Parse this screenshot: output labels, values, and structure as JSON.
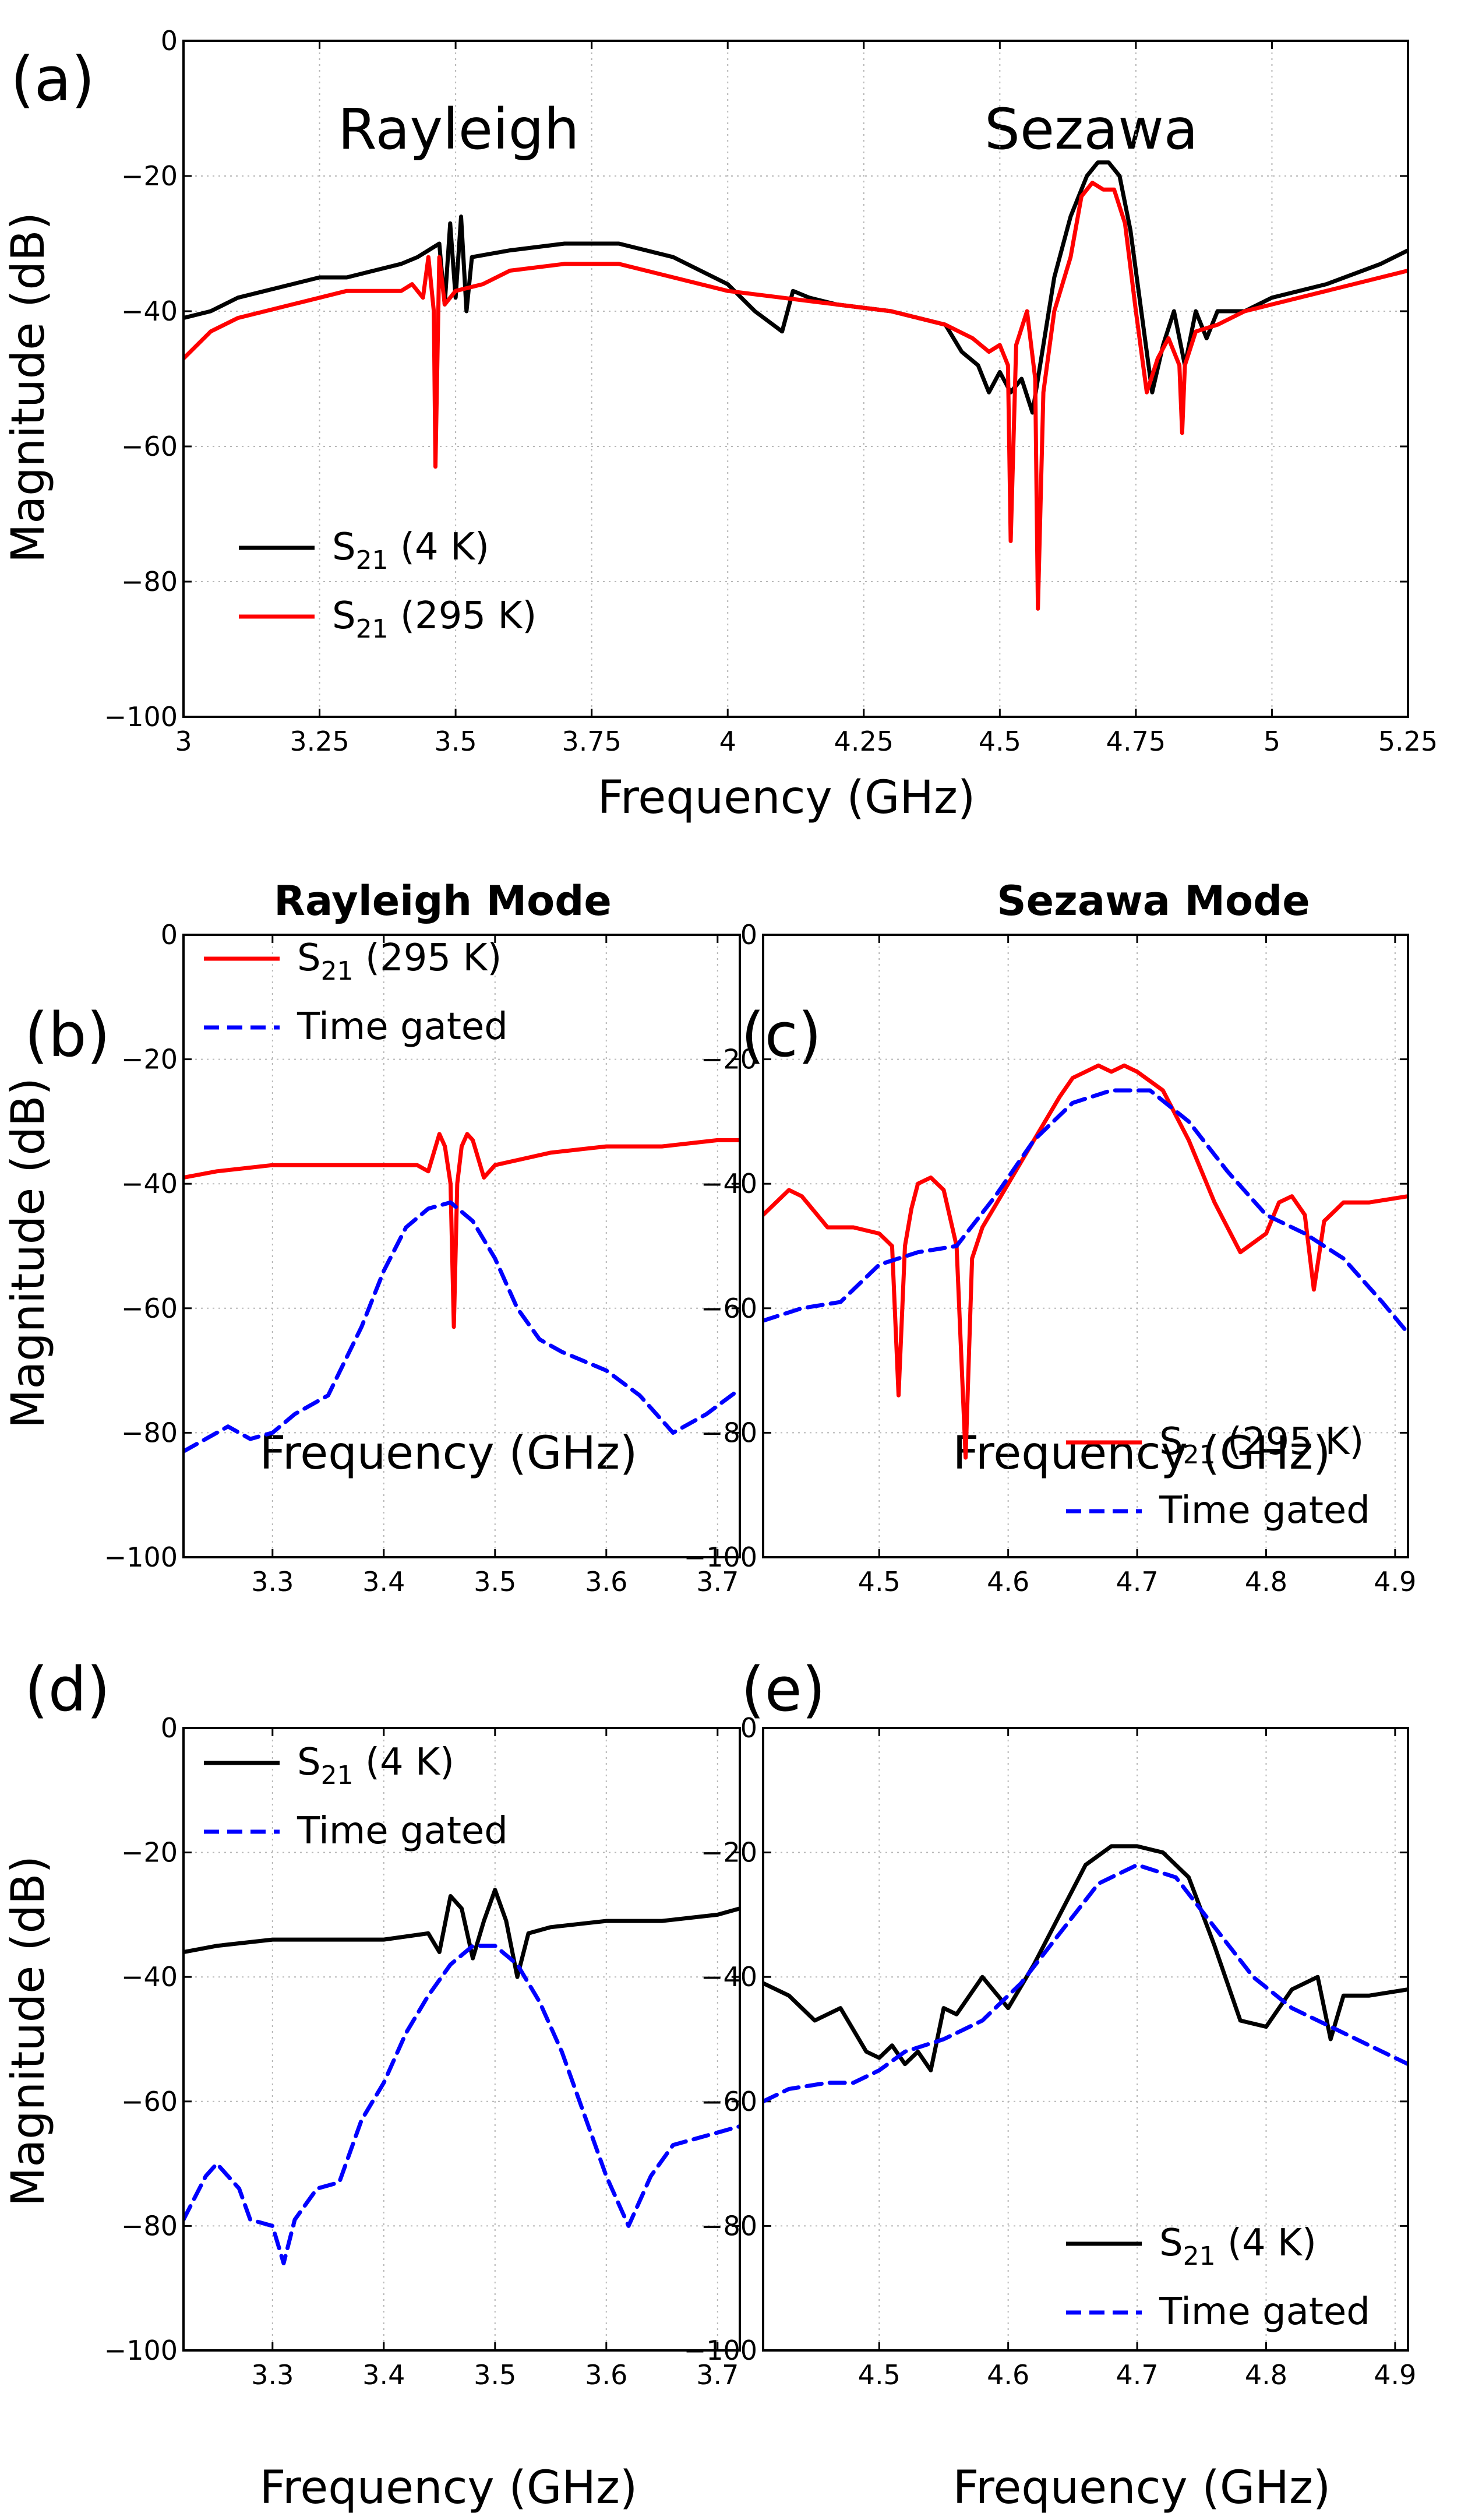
{
  "chart_data": [
    {
      "type": "line",
      "panel": "(a)",
      "xlabel": "Frequency (GHz)",
      "ylabel": "Magnitude (dB)",
      "xlim": [
        3,
        5.25
      ],
      "ylim": [
        -100,
        0
      ],
      "xticks": [
        "3",
        "3.25",
        "3.5",
        "3.75",
        "4",
        "4.25",
        "4.5",
        "4.75",
        "5",
        "5.25"
      ],
      "yticks": [
        "0",
        "−20",
        "−40",
        "−60",
        "−80",
        "−100"
      ],
      "annotations": [
        "Rayleigh",
        "Sezawa"
      ],
      "legend_position": "lower-left",
      "grid": true,
      "series": [
        {
          "name": "S21 (4 K)",
          "name_base": "S",
          "name_sub": "21",
          "name_rest": " (4 K)",
          "color": "#000000",
          "dash": "solid",
          "x": [
            3.0,
            3.05,
            3.1,
            3.15,
            3.2,
            3.25,
            3.3,
            3.35,
            3.4,
            3.43,
            3.45,
            3.47,
            3.48,
            3.49,
            3.5,
            3.51,
            3.52,
            3.53,
            3.6,
            3.7,
            3.8,
            3.9,
            4.0,
            4.05,
            4.1,
            4.12,
            4.15,
            4.2,
            4.3,
            4.4,
            4.43,
            4.46,
            4.48,
            4.5,
            4.52,
            4.54,
            4.56,
            4.58,
            4.6,
            4.63,
            4.66,
            4.68,
            4.7,
            4.72,
            4.74,
            4.76,
            4.78,
            4.8,
            4.82,
            4.84,
            4.86,
            4.88,
            4.9,
            4.95,
            5.0,
            5.1,
            5.2,
            5.25
          ],
          "y": [
            -41,
            -40,
            -38,
            -37,
            -36,
            -35,
            -35,
            -34,
            -33,
            -32,
            -31,
            -30,
            -39,
            -27,
            -38,
            -26,
            -40,
            -32,
            -31,
            -30,
            -30,
            -32,
            -36,
            -40,
            -43,
            -37,
            -38,
            -39,
            -40,
            -42,
            -46,
            -48,
            -52,
            -49,
            -52,
            -50,
            -55,
            -45,
            -35,
            -26,
            -20,
            -18,
            -18,
            -20,
            -28,
            -40,
            -52,
            -45,
            -40,
            -48,
            -40,
            -44,
            -40,
            -40,
            -38,
            -36,
            -33,
            -31
          ]
        },
        {
          "name": "S21 (295 K)",
          "name_base": "S",
          "name_sub": "21",
          "name_rest": " (295 K)",
          "color": "#ff0000",
          "dash": "solid",
          "x": [
            3.0,
            3.05,
            3.1,
            3.15,
            3.2,
            3.25,
            3.3,
            3.35,
            3.4,
            3.42,
            3.44,
            3.45,
            3.46,
            3.463,
            3.47,
            3.48,
            3.5,
            3.55,
            3.6,
            3.7,
            3.8,
            3.9,
            4.0,
            4.1,
            4.2,
            4.3,
            4.4,
            4.45,
            4.48,
            4.5,
            4.515,
            4.52,
            4.53,
            4.55,
            4.565,
            4.57,
            4.58,
            4.6,
            4.63,
            4.65,
            4.67,
            4.69,
            4.71,
            4.73,
            4.75,
            4.77,
            4.79,
            4.81,
            4.83,
            4.835,
            4.84,
            4.86,
            4.9,
            4.95,
            5.0,
            5.1,
            5.2,
            5.25
          ],
          "y": [
            -47,
            -43,
            -41,
            -40,
            -39,
            -38,
            -37,
            -37,
            -37,
            -36,
            -38,
            -32,
            -40,
            -63,
            -32,
            -39,
            -37,
            -36,
            -34,
            -33,
            -33,
            -35,
            -37,
            -38,
            -39,
            -40,
            -42,
            -44,
            -46,
            -45,
            -48,
            -74,
            -45,
            -40,
            -50,
            -84,
            -52,
            -40,
            -32,
            -23,
            -21,
            -22,
            -22,
            -27,
            -40,
            -52,
            -47,
            -44,
            -48,
            -58,
            -48,
            -43,
            -42,
            -40,
            -39,
            -37,
            -35,
            -34
          ]
        }
      ]
    },
    {
      "type": "line",
      "panel": "(b)",
      "title": "Rayleigh Mode",
      "xlabel": "Frequency (GHz)",
      "ylabel": "Magnitude (dB)",
      "xlim": [
        3.22,
        3.72
      ],
      "ylim": [
        -100,
        0
      ],
      "xticks": [
        "3.3",
        "3.4",
        "3.5",
        "3.6",
        "3.7"
      ],
      "yticks": [
        "0",
        "−20",
        "−40",
        "−60",
        "−80",
        "−100"
      ],
      "legend_position": "top-left",
      "grid": true,
      "series": [
        {
          "name": "S21 (295 K)",
          "name_base": "S",
          "name_sub": "21",
          "name_rest": " (295 K)",
          "color": "#ff0000",
          "dash": "solid",
          "x": [
            3.22,
            3.25,
            3.3,
            3.35,
            3.4,
            3.43,
            3.44,
            3.45,
            3.455,
            3.46,
            3.463,
            3.466,
            3.47,
            3.475,
            3.48,
            3.49,
            3.5,
            3.55,
            3.6,
            3.65,
            3.7,
            3.72
          ],
          "y": [
            -39,
            -38,
            -37,
            -37,
            -37,
            -37,
            -38,
            -32,
            -34,
            -40,
            -63,
            -40,
            -34,
            -32,
            -33,
            -39,
            -37,
            -35,
            -34,
            -34,
            -33,
            -33
          ]
        },
        {
          "name": "Time gated",
          "color": "#0000ff",
          "dash": "dashed",
          "x": [
            3.22,
            3.24,
            3.26,
            3.28,
            3.3,
            3.32,
            3.35,
            3.38,
            3.4,
            3.42,
            3.44,
            3.46,
            3.48,
            3.5,
            3.52,
            3.54,
            3.56,
            3.6,
            3.63,
            3.66,
            3.69,
            3.72
          ],
          "y": [
            -83,
            -81,
            -79,
            -81,
            -80,
            -77,
            -74,
            -63,
            -54,
            -47,
            -44,
            -43,
            -46,
            -52,
            -60,
            -65,
            -67,
            -70,
            -74,
            -80,
            -77,
            -73
          ]
        }
      ]
    },
    {
      "type": "line",
      "panel": "(c)",
      "title": "Sezawa Mode",
      "xlabel": "Frequency (GHz)",
      "ylabel": "",
      "xlim": [
        4.41,
        4.91
      ],
      "ylim": [
        -100,
        0
      ],
      "xticks": [
        "4.5",
        "4.6",
        "4.7",
        "4.8",
        "4.9"
      ],
      "yticks": [
        "0",
        "−20",
        "−40",
        "−60",
        "−80",
        "−100"
      ],
      "legend_position": "bottom-right",
      "grid": true,
      "series": [
        {
          "name": "S21 (295 K)",
          "name_base": "S",
          "name_sub": "21",
          "name_rest": " (295 K)",
          "color": "#ff0000",
          "dash": "solid",
          "x": [
            4.41,
            4.43,
            4.44,
            4.46,
            4.48,
            4.5,
            4.51,
            4.515,
            4.52,
            4.525,
            4.53,
            4.54,
            4.55,
            4.56,
            4.567,
            4.572,
            4.58,
            4.6,
            4.62,
            4.64,
            4.65,
            4.66,
            4.67,
            4.68,
            4.69,
            4.7,
            4.72,
            4.74,
            4.76,
            4.78,
            4.8,
            4.81,
            4.82,
            4.83,
            4.837,
            4.845,
            4.86,
            4.88,
            4.91
          ],
          "y": [
            -45,
            -41,
            -42,
            -47,
            -47,
            -48,
            -50,
            -74,
            -50,
            -44,
            -40,
            -39,
            -41,
            -50,
            -84,
            -52,
            -47,
            -40,
            -33,
            -26,
            -23,
            -22,
            -21,
            -22,
            -21,
            -22,
            -25,
            -33,
            -43,
            -51,
            -48,
            -43,
            -42,
            -45,
            -57,
            -46,
            -43,
            -43,
            -42
          ]
        },
        {
          "name": "Time gated",
          "color": "#0000ff",
          "dash": "dashed",
          "x": [
            4.41,
            4.44,
            4.47,
            4.5,
            4.53,
            4.56,
            4.59,
            4.62,
            4.65,
            4.68,
            4.71,
            4.74,
            4.77,
            4.8,
            4.83,
            4.86,
            4.89,
            4.91
          ],
          "y": [
            -62,
            -60,
            -59,
            -53,
            -51,
            -50,
            -42,
            -33,
            -27,
            -25,
            -25,
            -30,
            -38,
            -45,
            -48,
            -52,
            -59,
            -64
          ]
        }
      ]
    },
    {
      "type": "line",
      "panel": "(d)",
      "xlabel": "Frequency (GHz)",
      "ylabel": "Magnitude (dB)",
      "xlim": [
        3.22,
        3.72
      ],
      "ylim": [
        -100,
        0
      ],
      "xticks": [
        "3.3",
        "3.4",
        "3.5",
        "3.6",
        "3.7"
      ],
      "yticks": [
        "0",
        "−20",
        "−40",
        "−60",
        "−80",
        "−100"
      ],
      "legend_position": "top-left",
      "grid": true,
      "series": [
        {
          "name": "S21 (4 K)",
          "name_base": "S",
          "name_sub": "21",
          "name_rest": " (4 K)",
          "color": "#000000",
          "dash": "solid",
          "x": [
            3.22,
            3.25,
            3.3,
            3.35,
            3.4,
            3.44,
            3.45,
            3.46,
            3.47,
            3.48,
            3.49,
            3.5,
            3.51,
            3.52,
            3.53,
            3.55,
            3.6,
            3.65,
            3.7,
            3.72
          ],
          "y": [
            -36,
            -35,
            -34,
            -34,
            -34,
            -33,
            -36,
            -27,
            -29,
            -37,
            -31,
            -26,
            -31,
            -40,
            -33,
            -32,
            -31,
            -31,
            -30,
            -29
          ]
        },
        {
          "name": "Time gated",
          "color": "#0000ff",
          "dash": "dashed",
          "x": [
            3.22,
            3.24,
            3.25,
            3.27,
            3.28,
            3.3,
            3.31,
            3.32,
            3.34,
            3.36,
            3.38,
            3.4,
            3.42,
            3.44,
            3.46,
            3.48,
            3.5,
            3.52,
            3.54,
            3.56,
            3.58,
            3.6,
            3.62,
            3.64,
            3.66,
            3.68,
            3.7,
            3.72
          ],
          "y": [
            -79,
            -72,
            -70,
            -74,
            -79,
            -80,
            -86,
            -79,
            -74,
            -73,
            -63,
            -57,
            -49,
            -43,
            -38,
            -35,
            -35,
            -38,
            -44,
            -52,
            -62,
            -72,
            -80,
            -72,
            -67,
            -66,
            -65,
            -64
          ]
        }
      ]
    },
    {
      "type": "line",
      "panel": "(e)",
      "xlabel": "Frequency (GHz)",
      "ylabel": "",
      "xlim": [
        4.41,
        4.91
      ],
      "ylim": [
        -100,
        0
      ],
      "xticks": [
        "4.5",
        "4.6",
        "4.7",
        "4.8",
        "4.9"
      ],
      "yticks": [
        "0",
        "−20",
        "−40",
        "−60",
        "−80",
        "−100"
      ],
      "legend_position": "bottom-right",
      "grid": true,
      "series": [
        {
          "name": "S21 (4 K)",
          "name_base": "S",
          "name_sub": "21",
          "name_rest": " (4 K)",
          "color": "#000000",
          "dash": "solid",
          "x": [
            4.41,
            4.43,
            4.45,
            4.47,
            4.49,
            4.5,
            4.51,
            4.52,
            4.53,
            4.54,
            4.55,
            4.56,
            4.58,
            4.6,
            4.62,
            4.64,
            4.66,
            4.68,
            4.7,
            4.72,
            4.74,
            4.76,
            4.78,
            4.8,
            4.82,
            4.84,
            4.85,
            4.86,
            4.88,
            4.91
          ],
          "y": [
            -41,
            -43,
            -47,
            -45,
            -52,
            -53,
            -51,
            -54,
            -52,
            -55,
            -45,
            -46,
            -40,
            -45,
            -38,
            -30,
            -22,
            -19,
            -19,
            -20,
            -24,
            -35,
            -47,
            -48,
            -42,
            -40,
            -50,
            -43,
            -43,
            -42
          ]
        },
        {
          "name": "Time gated",
          "color": "#0000ff",
          "dash": "dashed",
          "x": [
            4.41,
            4.43,
            4.46,
            4.48,
            4.5,
            4.52,
            4.55,
            4.58,
            4.61,
            4.64,
            4.67,
            4.7,
            4.73,
            4.76,
            4.79,
            4.82,
            4.85,
            4.88,
            4.91
          ],
          "y": [
            -60,
            -58,
            -57,
            -57,
            -55,
            -52,
            -50,
            -47,
            -41,
            -33,
            -25,
            -22,
            -24,
            -32,
            -40,
            -45,
            -48,
            -51,
            -54
          ]
        }
      ]
    }
  ]
}
